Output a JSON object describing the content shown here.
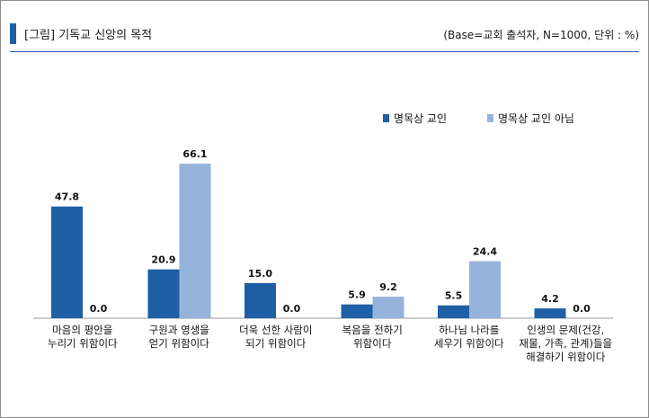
{
  "header": {
    "title": "[그림] 기독교 신앙의 목적",
    "base_note": "(Base=교회 출석자,  N=1000,  단위 : %)"
  },
  "colors": {
    "accent": "#1f5fa6",
    "series_1": "#1f5fa6",
    "series_2": "#96b4db"
  },
  "chart_data": {
    "type": "bar",
    "title": "[그림] 기독교 신앙의 목적",
    "categories": [
      [
        "마음의 평안을",
        "누리기 위함이다"
      ],
      [
        "구원과 영생을",
        "얻기 위함이다"
      ],
      [
        "더욱 선한 사람이",
        "되기 위함이다"
      ],
      [
        "복음을 전하기",
        "위함이다"
      ],
      [
        "하나님 나라를",
        "세우기 위함이다"
      ],
      [
        "인생의 문제(건강,",
        "재물, 가족, 관계)들을",
        "해결하기 위함이다"
      ]
    ],
    "series": [
      {
        "name": "명목상 교인",
        "values": [
          47.8,
          20.9,
          15.0,
          5.9,
          5.5,
          4.2
        ],
        "labels": [
          "47.8",
          "20.9",
          "15.0",
          "5.9",
          "5.5",
          "4.2"
        ]
      },
      {
        "name": "명목상 교인 아님",
        "values": [
          0.0,
          66.1,
          0.0,
          9.2,
          24.4,
          0.0
        ],
        "labels": [
          "0.0",
          "66.1",
          "0.0",
          "9.2",
          "24.4",
          "0.0"
        ]
      }
    ],
    "legend_position": "top-right",
    "ylim": [
      0,
      70
    ],
    "grid": false
  }
}
